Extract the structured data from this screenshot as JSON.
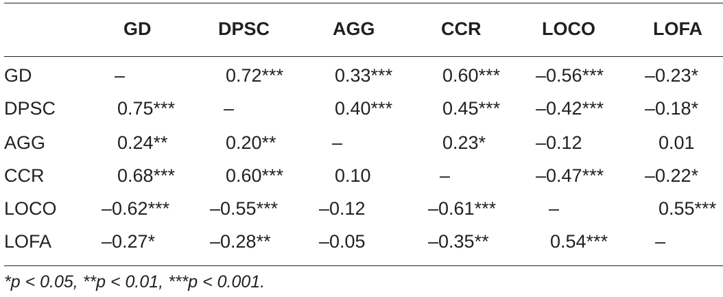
{
  "table": {
    "columns": [
      "",
      "GD",
      "DPSC",
      "AGG",
      "CCR",
      "LOCO",
      "LOFA"
    ],
    "rows": [
      {
        "label": "GD",
        "cells": [
          "–",
          "0.72***",
          "0.33***",
          "0.60***",
          "–0.56***",
          "–0.23*"
        ]
      },
      {
        "label": "DPSC",
        "cells": [
          "0.75***",
          "–",
          "0.40***",
          "0.45***",
          "–0.42***",
          "–0.18*"
        ]
      },
      {
        "label": "AGG",
        "cells": [
          "0.24**",
          "0.20**",
          "–",
          "0.23*",
          "–0.12",
          "0.01"
        ]
      },
      {
        "label": "CCR",
        "cells": [
          "0.68***",
          "0.60***",
          "0.10",
          "–",
          "–0.47***",
          "–0.22*"
        ]
      },
      {
        "label": "LOCO",
        "cells": [
          "–0.62***",
          "–0.55***",
          "–0.12",
          "–0.61***",
          "–",
          "0.55***"
        ]
      },
      {
        "label": "LOFA",
        "cells": [
          "–0.27*",
          "–0.28**",
          "–0.05",
          "–0.35**",
          "0.54***",
          "–"
        ]
      }
    ]
  },
  "footnote": "*p < 0.05, **p < 0.01, ***p < 0.001."
}
